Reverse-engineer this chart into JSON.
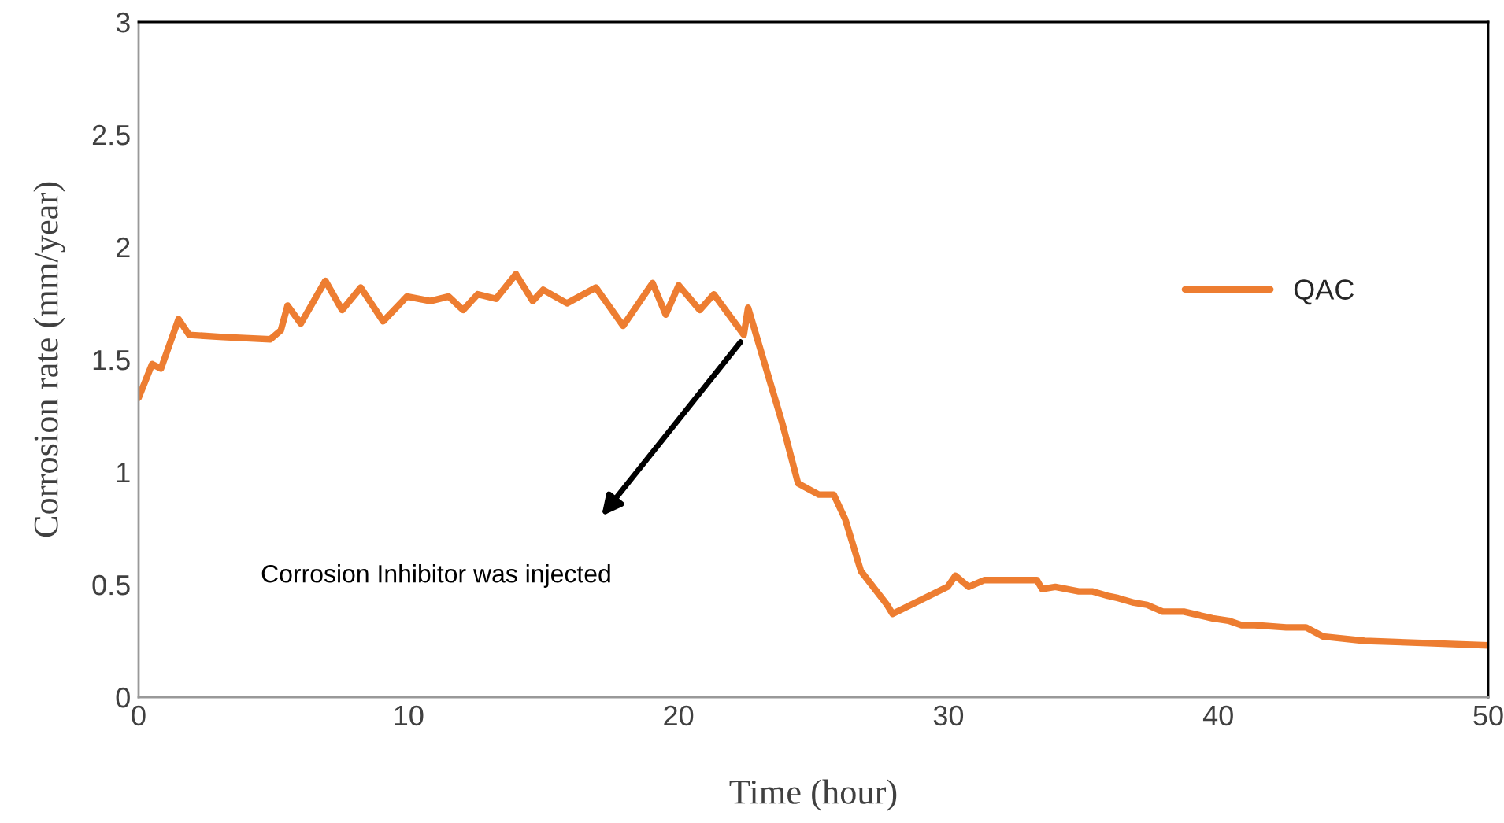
{
  "chart_data": {
    "type": "line",
    "xlabel": "Time (hour)",
    "ylabel": "Corrosion rate (mm/year)",
    "xlim": [
      0,
      50
    ],
    "xticks": [
      0,
      10,
      20,
      30,
      40,
      50
    ],
    "ylim": [
      0,
      3
    ],
    "yticks": [
      0,
      0.5,
      1,
      1.5,
      2,
      2.5,
      3
    ],
    "grid": false,
    "legend": "right",
    "marker": "none",
    "line_style": "solid",
    "annotations": [
      "Corrosion Inhibitor was injected"
    ],
    "series": [
      {
        "name": "QAC",
        "color": "#ed7d31",
        "x": [
          0,
          0.5,
          0.83,
          1.48,
          1.87,
          3.13,
          4.88,
          5.27,
          5.52,
          6.01,
          6.92,
          7.54,
          8.23,
          9.06,
          9.94,
          10.81,
          11.49,
          12.02,
          12.56,
          13.24,
          13.98,
          14.6,
          14.99,
          15.87,
          16.94,
          17.95,
          19.04,
          19.53,
          20.01,
          20.79,
          21.31,
          22.42,
          22.58,
          23.84,
          24.43,
          25.2,
          25.75,
          26.18,
          26.76,
          27.73,
          27.93,
          29.97,
          30.26,
          30.75,
          31.33,
          33.28,
          33.47,
          33.96,
          34.83,
          35.32,
          35.9,
          36.29,
          36.87,
          37.36,
          37.94,
          38.72,
          39.79,
          40.37,
          40.86,
          41.35,
          42.51,
          43.25,
          43.87,
          45.43,
          47.77,
          50
        ],
        "values": [
          1.33,
          1.48,
          1.46,
          1.68,
          1.61,
          1.6,
          1.59,
          1.63,
          1.74,
          1.66,
          1.85,
          1.72,
          1.82,
          1.67,
          1.78,
          1.76,
          1.78,
          1.72,
          1.79,
          1.77,
          1.88,
          1.76,
          1.81,
          1.75,
          1.82,
          1.65,
          1.84,
          1.7,
          1.83,
          1.72,
          1.79,
          1.61,
          1.73,
          1.22,
          0.95,
          0.9,
          0.9,
          0.79,
          0.56,
          0.41,
          0.37,
          0.49,
          0.54,
          0.49,
          0.52,
          0.52,
          0.48,
          0.49,
          0.47,
          0.47,
          0.45,
          0.44,
          0.42,
          0.41,
          0.38,
          0.38,
          0.35,
          0.34,
          0.32,
          0.32,
          0.31,
          0.31,
          0.27,
          0.25,
          0.24,
          0.23
        ]
      }
    ]
  }
}
